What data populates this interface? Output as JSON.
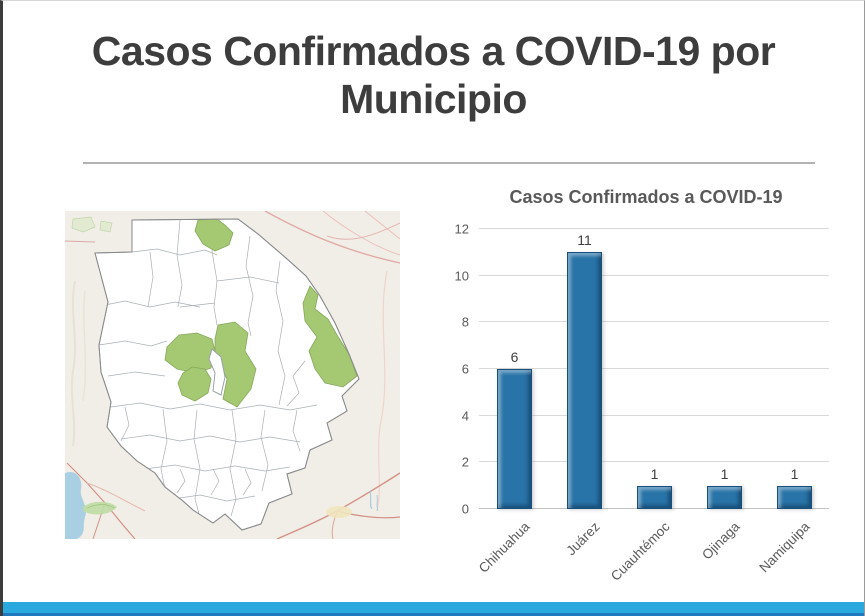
{
  "slide": {
    "title": "Casos Confirmados a COVID-19 por Municipio",
    "title_color": "#3d3d3d"
  },
  "map": {
    "kind": "state-municipality-choropleth",
    "background_color": "#f1eee7",
    "state_fill": "#ffffff",
    "border_color": "#9aa2a8",
    "highlight_color": "#a5c873",
    "water_color": "#a9cfe2",
    "road_color": "#d49186",
    "highlighted_region_count": 5
  },
  "chart_data": {
    "type": "bar",
    "title": "Casos Confirmados a COVID-19",
    "categories": [
      "Chihuahua",
      "Juárez",
      "Cuauhtémoc",
      "Ojinaga",
      "Namiquipa"
    ],
    "values": [
      6,
      11,
      1,
      1,
      1
    ],
    "data_labels_shown": true,
    "xlabel": "",
    "ylabel": "",
    "ylim": [
      0,
      12
    ],
    "yticks": [
      0,
      2,
      4,
      6,
      8,
      10,
      12
    ],
    "grid": true,
    "legend": false,
    "bar_color": "#2873a7",
    "bar_edge_color": "#17507d",
    "gridline_color": "#d9d9d9",
    "axis_text_color": "#595959",
    "title_color": "#595959"
  },
  "footer": {
    "accent_bar_color": "#2aa9df",
    "bottom_bar_color": "#1e79be"
  }
}
